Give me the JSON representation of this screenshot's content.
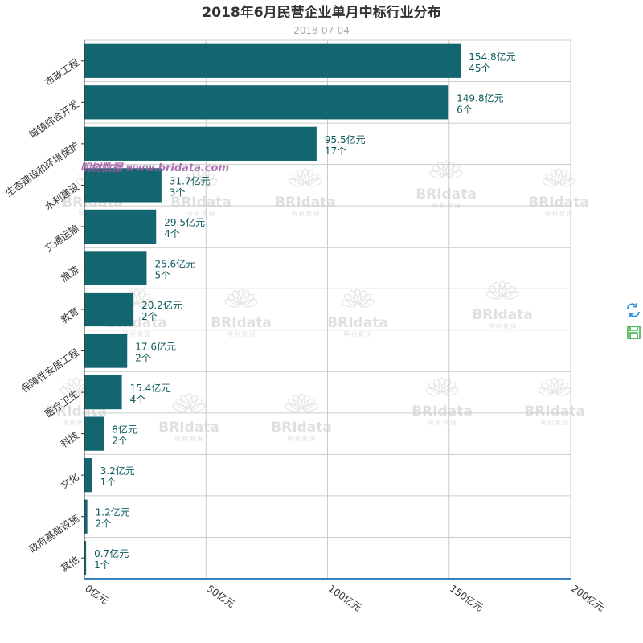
{
  "colors": {
    "bar": "#13666f",
    "grid": "#cccccc",
    "axis": "#3a7fc0",
    "label": "#0d5a5a",
    "watermark": "#a05aa8",
    "refresh_icon": "#2a8fdc",
    "save_icon": "#3cb84a"
  },
  "toolbox": {
    "refresh_icon": "refresh-icon",
    "save_icon": "save-image-icon"
  },
  "watermark": {
    "text": "明树数据 www.bridata.com",
    "logo_text": "BRIdata",
    "logo_sub": "明 树 数 据"
  },
  "chart_data": {
    "type": "bar",
    "orientation": "horizontal",
    "title": "2018年6月民营企业单月中标行业分布",
    "subtitle": "2018-07-04",
    "categories": [
      "市政工程",
      "城镇综合开发",
      "生态建设和环境保护",
      "水利建设",
      "交通运输",
      "旅游",
      "教育",
      "保障性安居工程",
      "医疗卫生",
      "科技",
      "文化",
      "政府基础设施",
      "其他"
    ],
    "values": [
      154.8,
      149.8,
      95.5,
      31.7,
      29.5,
      25.6,
      20.2,
      17.6,
      15.4,
      8,
      3.2,
      1.2,
      0.7
    ],
    "counts": [
      45,
      6,
      17,
      3,
      4,
      5,
      2,
      2,
      4,
      2,
      1,
      2,
      1
    ],
    "value_labels": [
      "154.8亿元",
      "149.8亿元",
      "95.5亿元",
      "31.7亿元",
      "29.5亿元",
      "25.6亿元",
      "20.2亿元",
      "17.6亿元",
      "15.4亿元",
      "8亿元",
      "3.2亿元",
      "1.2亿元",
      "0.7亿元"
    ],
    "count_labels": [
      "45个",
      "6个",
      "17个",
      "3个",
      "4个",
      "5个",
      "2个",
      "2个",
      "4个",
      "2个",
      "1个",
      "2个",
      "1个"
    ],
    "x_ticks": [
      0,
      50,
      100,
      150,
      200
    ],
    "x_tick_labels": [
      "0亿元",
      "50亿元",
      "100亿元",
      "150亿元",
      "200亿元"
    ],
    "xlim": [
      0,
      200
    ],
    "grid": true,
    "legend": false
  }
}
